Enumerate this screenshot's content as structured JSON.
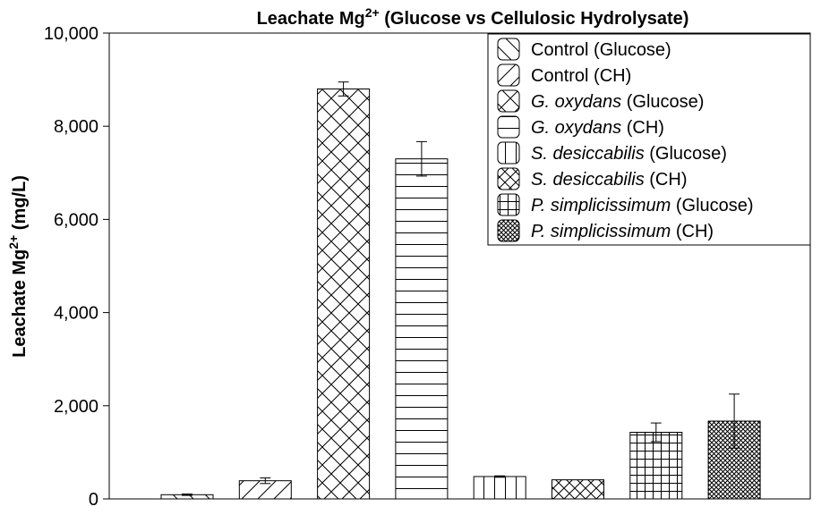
{
  "chart_data": {
    "type": "bar",
    "title": "Leachate Mg",
    "title_sup": "2+",
    "title_rest": " (Glucose vs Cellulosic Hydrolysate)",
    "ylabel": "Leachate Mg",
    "ylabel_sup": "2+",
    "ylabel_rest": " (mg/L)",
    "xlabel": "",
    "ylim": [
      0,
      10000
    ],
    "yticks": [
      0,
      2000,
      4000,
      6000,
      8000,
      10000
    ],
    "ytick_labels": [
      "0",
      "2,000",
      "4,000",
      "6,000",
      "8,000",
      "10,000"
    ],
    "grid": false,
    "legend_position": "top-right",
    "series": [
      {
        "name_italic": "",
        "name_rest": "Control (Glucose)",
        "value": 90,
        "error": 15,
        "pattern": "diag-back"
      },
      {
        "name_italic": "",
        "name_rest": "Control (CH)",
        "value": 390,
        "error": 60,
        "pattern": "diag-fwd"
      },
      {
        "name_italic": "G. oxydans",
        "name_rest": " (Glucose)",
        "value": 8800,
        "error": 150,
        "pattern": "crosshatch"
      },
      {
        "name_italic": "G. oxydans",
        "name_rest": " (CH)",
        "value": 7300,
        "error": 370,
        "pattern": "horizontal"
      },
      {
        "name_italic": "S. desiccabilis",
        "name_rest": " (Glucose)",
        "value": 480,
        "error": 15,
        "pattern": "vertical"
      },
      {
        "name_italic": "S. desiccabilis",
        "name_rest": " (CH)",
        "value": 410,
        "error": 0,
        "pattern": "crosshatch-small"
      },
      {
        "name_italic": "P. simplicissimum",
        "name_rest": " (Glucose)",
        "value": 1430,
        "error": 200,
        "pattern": "grid"
      },
      {
        "name_italic": "P. simplicissimum",
        "name_rest": " (CH)",
        "value": 1670,
        "error": 580,
        "pattern": "crosshatch-dense"
      }
    ]
  }
}
